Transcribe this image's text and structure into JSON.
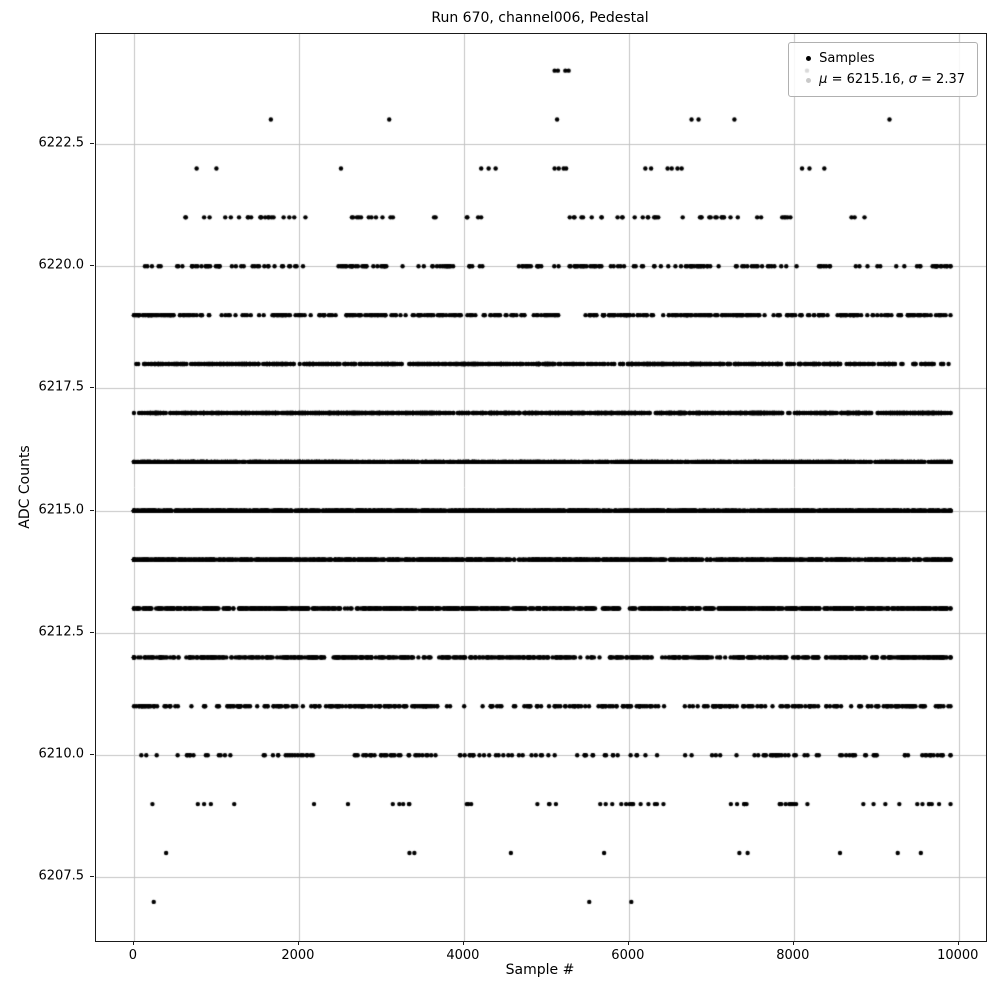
{
  "figure": {
    "title": "Run 670, channel006, Pedestal",
    "xlabel": "Sample #",
    "ylabel": "ADC Counts"
  },
  "legend": {
    "samples_label": "Samples",
    "mu_symbol": "μ",
    "mu_rest": " = 6215.16, ",
    "sigma_symbol": "σ",
    "sigma_rest": " = 2.37"
  },
  "chart_data": {
    "type": "scatter",
    "title": "Run 670, channel006, Pedestal",
    "xlabel": "Sample #",
    "ylabel": "ADC Counts",
    "xlim": [
      -460,
      10330
    ],
    "ylim": [
      6206.2,
      6224.75
    ],
    "x_ticks": [
      0,
      2000,
      4000,
      6000,
      8000,
      10000
    ],
    "y_ticks": [
      6207.5,
      6210.0,
      6212.5,
      6215.0,
      6217.5,
      6220.0,
      6222.5
    ],
    "grid": true,
    "legend_position": "upper right",
    "legend_entries": [
      "Samples",
      "μ = 6215.16, σ = 2.37"
    ],
    "mu": 6215.16,
    "sigma": 2.37,
    "n_samples": 10000,
    "x_range": [
      0,
      9900
    ],
    "marker_color": "#000000",
    "marker_radius_px": 2.2,
    "grid_color": "#c3c3c3",
    "bands": [
      {
        "adc": 6207,
        "x": [
          240,
          5520,
          6030
        ]
      },
      {
        "adc": 6208,
        "x": [
          390,
          3340,
          3400,
          4570,
          5700,
          7340,
          7440,
          8560,
          9260,
          9540
        ]
      },
      {
        "adc": 6209,
        "count": 60
      },
      {
        "adc": 6210,
        "count": 160
      },
      {
        "adc": 6211,
        "count": 360
      },
      {
        "adc": 6212,
        "count": 690
      },
      {
        "adc": 6213,
        "count": 1110
      },
      {
        "adc": 6214,
        "count": 1490
      },
      {
        "adc": 6215,
        "count": 1680
      },
      {
        "adc": 6216,
        "count": 1580
      },
      {
        "adc": 6217,
        "count": 1250
      },
      {
        "adc": 6218,
        "count": 820
      },
      {
        "adc": 6219,
        "count": 455
      },
      {
        "adc": 6220,
        "count": 210
      },
      {
        "adc": 6221,
        "count": 82
      },
      {
        "adc": 6222,
        "x": [
          760,
          1000,
          2510,
          4210,
          4300,
          4385,
          5100,
          5150,
          5210,
          5240,
          6200,
          6270,
          6470,
          6520,
          6590,
          6640,
          8100,
          8190,
          8370
        ]
      },
      {
        "adc": 6223,
        "x": [
          1660,
          3095,
          5130,
          6760,
          6845,
          7280,
          9160
        ]
      },
      {
        "adc": 6224,
        "x": [
          5100,
          5140,
          5230,
          5270,
          8160
        ]
      }
    ]
  }
}
